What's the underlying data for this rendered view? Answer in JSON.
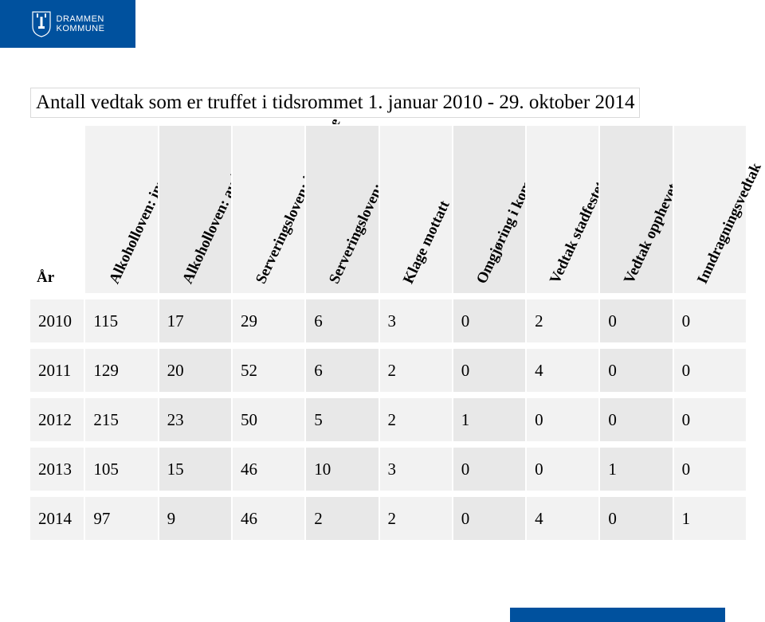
{
  "brand": {
    "line1": "DRAMMEN",
    "line2": "KOMMUNE",
    "bar_color": "#00519e",
    "text_color": "#ffffff"
  },
  "title": "Antall vedtak som er truffet i tidsrommet 1. januar 2010 - 29. oktober 2014",
  "table": {
    "year_label": "År",
    "columns": [
      "Alkoholloven: innvilgelse",
      "Alkoholloven: avslag",
      "Serveringsloven: innvilgelse",
      "Serveringsloven: avslag",
      "Klage mottatt",
      "Omgjøring i kommunen",
      "Vedtak stadfestet av F.m.",
      "Vedtak opphevet av F.m.",
      "Inndragningsvedtak"
    ],
    "rows": [
      {
        "year": "2010",
        "values": [
          "115",
          "17",
          "29",
          "6",
          "3",
          "0",
          "2",
          "0",
          "0"
        ]
      },
      {
        "year": "2011",
        "values": [
          "129",
          "20",
          "52",
          "6",
          "2",
          "0",
          "4",
          "0",
          "0"
        ]
      },
      {
        "year": "2012",
        "values": [
          "215",
          "23",
          "50",
          "5",
          "2",
          "1",
          "0",
          "0",
          "0"
        ]
      },
      {
        "year": "2013",
        "values": [
          "105",
          "15",
          "46",
          "10",
          "3",
          "0",
          "0",
          "1",
          "0"
        ]
      },
      {
        "year": "2014",
        "values": [
          "97",
          "9",
          "46",
          "2",
          "2",
          "0",
          "4",
          "0",
          "1"
        ]
      }
    ],
    "header_bg": "#f2f2f2",
    "header_bg_alt": "#e8e8e8",
    "row_bg": "#f2f2f2",
    "row_bg_alt": "#e8e8e8",
    "font_size_header": 19,
    "font_size_cell": 21
  }
}
